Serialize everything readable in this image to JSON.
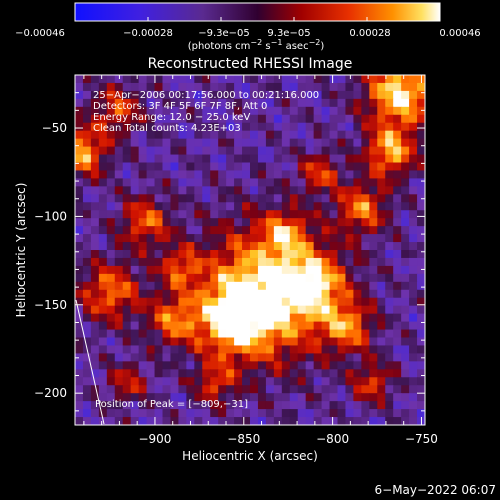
{
  "chart_data": {
    "type": "heatmap",
    "title": "Reconstructed RHESSI Image",
    "xlabel": "Heliocentric X (arcsec)",
    "ylabel": "Heliocentric Y (arcsec)",
    "xlim": [
      -945,
      -748
    ],
    "ylim": [
      -218,
      -20
    ],
    "x_ticks": [
      -900,
      -850,
      -800,
      -750
    ],
    "x_tick_labels": [
      "−900",
      "−850",
      "−800",
      "−750"
    ],
    "y_ticks": [
      -50,
      -100,
      -150,
      -200
    ],
    "y_tick_labels": [
      "−50",
      "−100",
      "−150",
      "−200"
    ],
    "colorbar": {
      "range": [
        -0.00046,
        0.00046
      ],
      "tick_labels": [
        "−0.00046",
        "−0.00028",
        "−9.3e−05",
        "9.3e−05",
        "0.00028",
        "0.00046"
      ],
      "units_text": "(photons cm",
      "units_sup1": "−2",
      "units_mid": " s",
      "units_sup2": "−1",
      "units_mid2": " asec",
      "units_sup3": "−2",
      "units_end": ")"
    },
    "annotations": [
      "25−Apr−2006 00:17:56.000 to 00:21:16.000",
      "Detectors: 3F 4F 5F 6F 7F 8F, Att 0",
      "Energy Range: 12.0 − 25.0 keV",
      "Clean    Total counts: 4.23E+03"
    ],
    "peak_label": "Position of Peak = [−809,−31]",
    "grid": false,
    "colormap": "rhessi-blue-red-yellow-white"
  },
  "date_stamp": "6−May−2022 06:07"
}
